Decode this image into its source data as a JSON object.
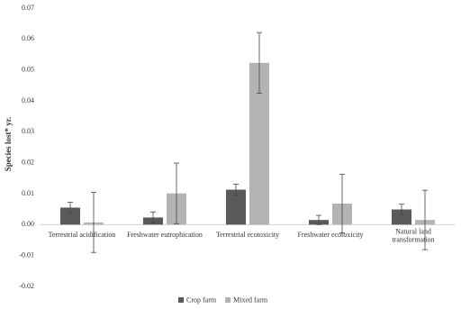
{
  "chart_data": {
    "type": "bar",
    "y_label": "Species lost* yr.",
    "categories": [
      "Terrestrial acidification",
      "Freshwater eutrophication",
      "Terrestrial ecotoxicity",
      "Freshwater ecotoxicity",
      "Natural land transformation"
    ],
    "series": [
      {
        "name": "Crop farm",
        "color": "#5a5a5a",
        "values": [
          0.0055,
          0.0023,
          0.0113,
          0.0015,
          0.0049
        ],
        "errors": [
          0.0017,
          0.0018,
          0.0018,
          0.0015,
          0.0017
        ]
      },
      {
        "name": "Mixed farm",
        "color": "#b3b3b3",
        "values": [
          0.0007,
          0.0101,
          0.0523,
          0.0068,
          0.0015
        ],
        "errors": [
          0.0097,
          0.0098,
          0.0098,
          0.0095,
          0.0096
        ]
      }
    ],
    "ylim": [
      -0.02,
      0.07
    ],
    "yticks": [
      -0.02,
      -0.01,
      {
        "value": 0,
        "label": "0.00"
      },
      0.01,
      0.02,
      0.03,
      0.04,
      0.05,
      0.06,
      0.07
    ],
    "legend": "bottom"
  }
}
